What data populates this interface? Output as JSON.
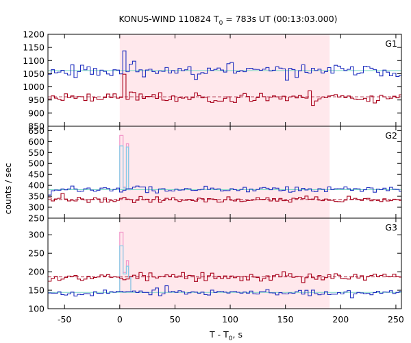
{
  "chart_data": {
    "type": "line",
    "title": {
      "main": "KONUS-WIND 110824 T",
      "sub": "0",
      "rest": " = 783s UT (00:13:03.000)"
    },
    "xlabel": {
      "main": "T - T",
      "sub": "0",
      "rest": ", s"
    },
    "ylabel": "counts / sec",
    "xlim": [
      -65,
      255
    ],
    "x_ticks": [
      -50,
      0,
      50,
      100,
      150,
      200,
      250
    ],
    "x_tick_labels": [
      "-50",
      "0",
      "50",
      "100",
      "150",
      "200",
      "250"
    ],
    "highlight_interval": [
      0,
      190
    ],
    "colors": {
      "highlight": "#ffe8ec",
      "blue_series": "#1f2fbf",
      "red_series": "#a8001a",
      "light_blue": "#87cde8",
      "pink": "#f29acb",
      "ref_line_cyan": "#7cd6c6",
      "ref_line_red": "#b0304a"
    },
    "panels": [
      {
        "name": "G1",
        "ylim": [
          850,
          1200
        ],
        "y_ticks": [
          850,
          900,
          950,
          1000,
          1050,
          1100,
          1150,
          1200
        ],
        "y_tick_labels": [
          "850",
          "900",
          "950",
          "1000",
          "1050",
          "1100",
          "1150",
          "1200"
        ],
        "bin_width": 2.944,
        "series": [
          {
            "color": "blue",
            "baseline": 1062,
            "noise": 14,
            "ref": 1062,
            "seed": 11
          },
          {
            "color": "red",
            "baseline": 960,
            "noise": 12,
            "ref": 962,
            "seed": 23
          }
        ],
        "spike": {
          "blue_peak": 1137,
          "red_peak": 1048,
          "start": 0,
          "end": 4
        }
      },
      {
        "name": "G2",
        "ylim": [
          250,
          670
        ],
        "y_ticks": [
          250,
          300,
          350,
          400,
          450,
          500,
          550,
          600,
          650
        ],
        "y_tick_labels": [
          "250",
          "300",
          "350",
          "400",
          "450",
          "500",
          "550",
          "600",
          "650"
        ],
        "bin_width": 2.944,
        "series": [
          {
            "color": "blue",
            "baseline": 380,
            "noise": 8,
            "ref": 380,
            "seed": 37
          },
          {
            "color": "red",
            "baseline": 335,
            "noise": 8,
            "ref": 335,
            "seed": 41
          }
        ],
        "spike": {
          "blue_peak": 580,
          "pink_peak": 628,
          "second_blue": 575,
          "second_pink": 590,
          "start": 0,
          "end": 8
        }
      },
      {
        "name": "G3",
        "ylim": [
          100,
          345
        ],
        "y_ticks": [
          100,
          150,
          200,
          250,
          300
        ],
        "y_tick_labels": [
          "100",
          "150",
          "200",
          "250",
          "300"
        ],
        "bin_width": 2.944,
        "series": [
          {
            "color": "red",
            "baseline": 186,
            "noise": 7,
            "ref": 186,
            "seed": 53
          },
          {
            "color": "blue",
            "baseline": 144,
            "noise": 5,
            "ref": 144,
            "seed": 67
          }
        ],
        "spike": {
          "blue_peak": 270,
          "pink_peak": 307,
          "second_blue": 215,
          "second_pink": 230,
          "start": 0,
          "end": 8
        }
      }
    ]
  }
}
